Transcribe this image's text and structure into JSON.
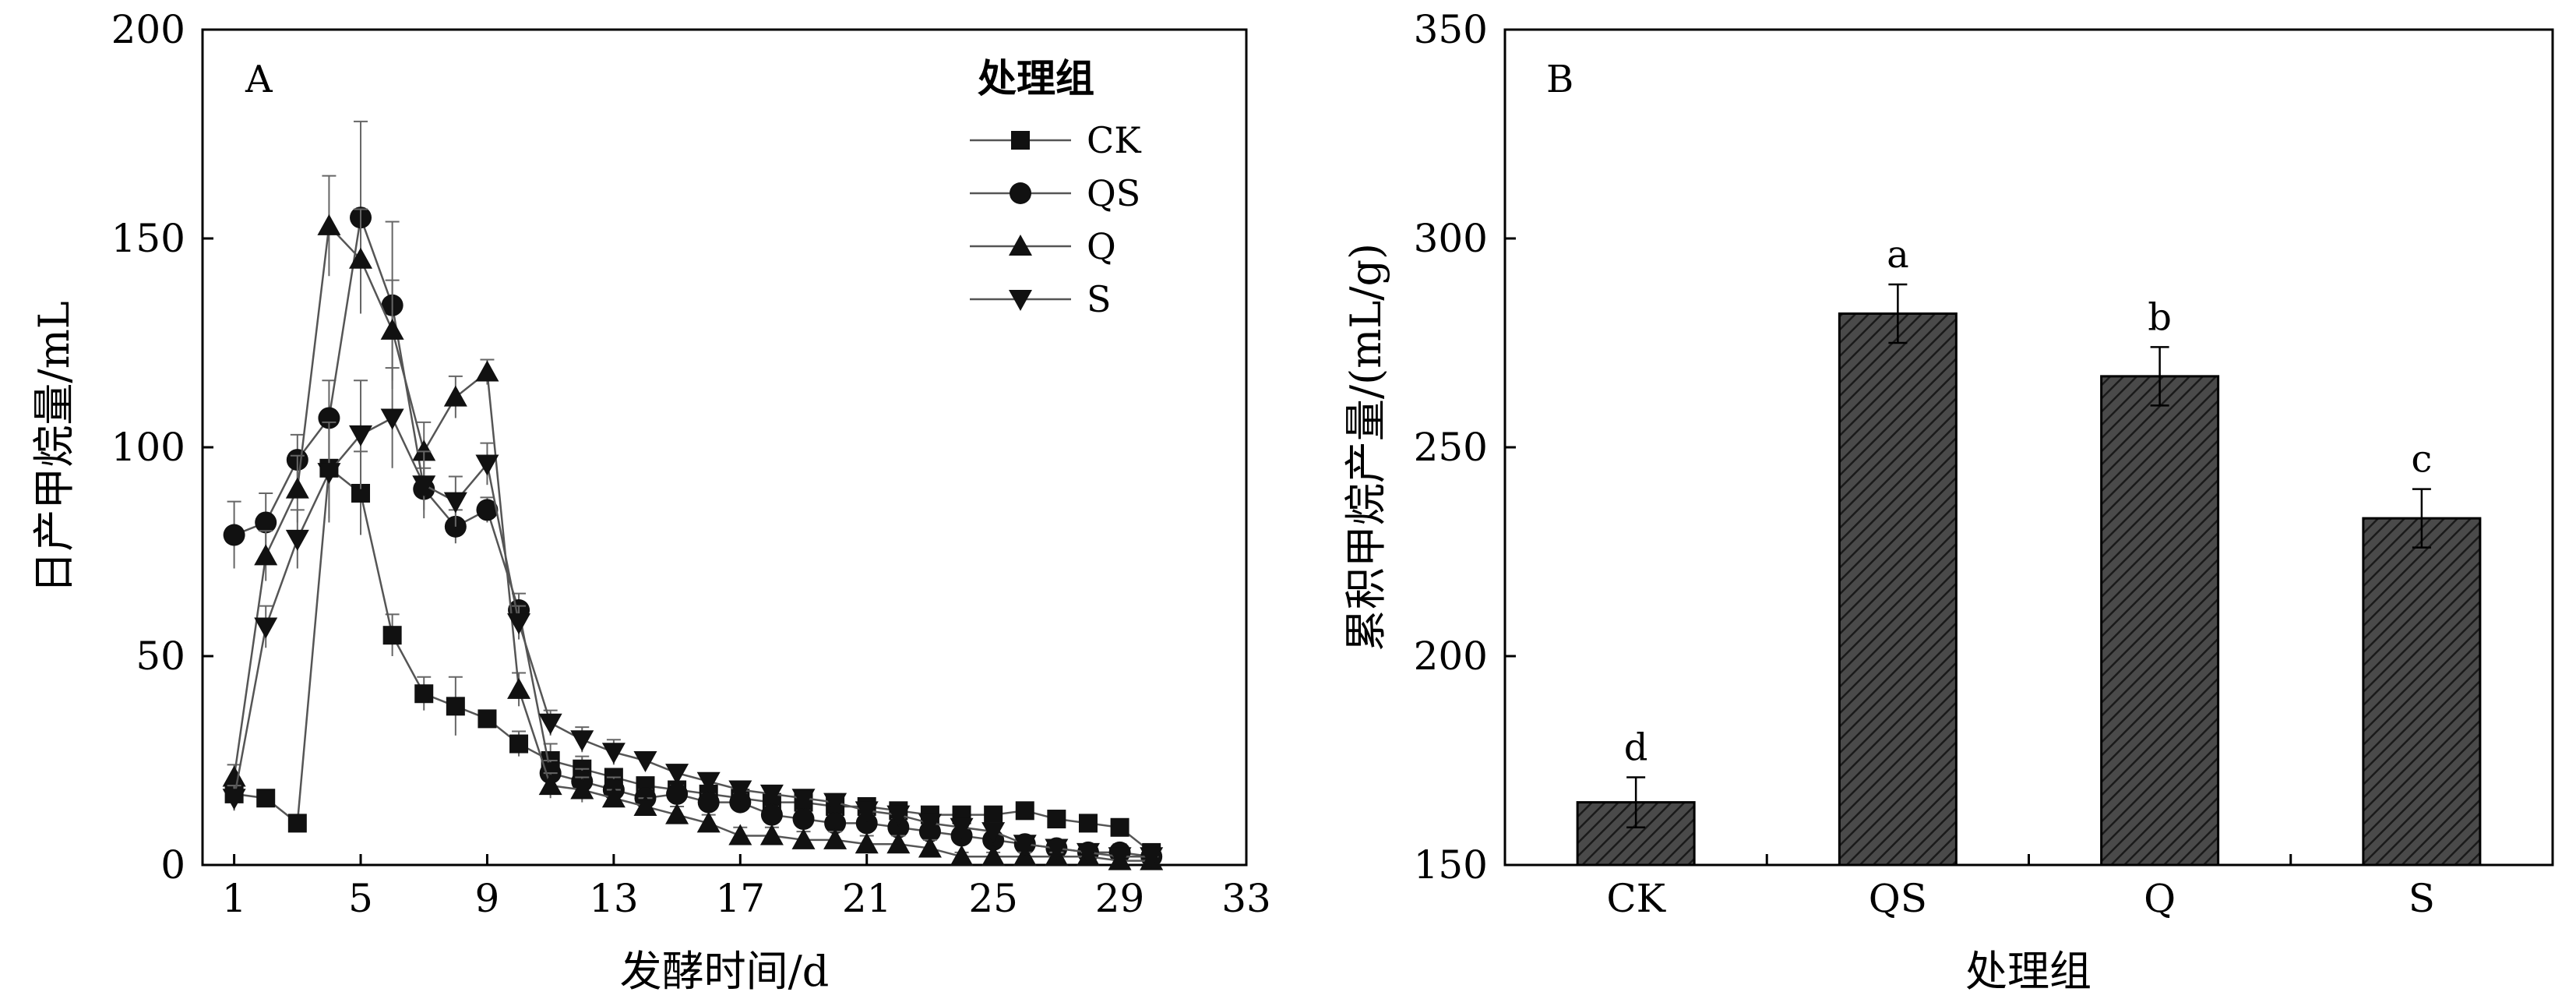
{
  "chart_data": [
    {
      "type": "line",
      "panel_label": "A",
      "xlabel": "发酵时间/d",
      "ylabel": "日产甲烷量/mL",
      "xlim": [
        0,
        33
      ],
      "ylim": [
        0,
        200
      ],
      "xticks": [
        1,
        5,
        9,
        13,
        17,
        21,
        25,
        29,
        33
      ],
      "yticks": [
        0,
        50,
        100,
        150,
        200
      ],
      "legend_title": "处理组",
      "legend_position": "top-right",
      "series": [
        {
          "name": "CK",
          "marker": "square",
          "x": [
            1,
            2,
            3,
            4,
            5,
            6,
            7,
            8,
            9,
            10,
            11,
            12,
            13,
            14,
            15,
            16,
            17,
            18,
            19,
            20,
            21,
            22,
            23,
            24,
            25,
            26,
            27,
            28,
            29,
            30
          ],
          "y": [
            17,
            16,
            10,
            95,
            89,
            55,
            41,
            38,
            35,
            29,
            25,
            23,
            21,
            19,
            18,
            17,
            16,
            15,
            15,
            14,
            14,
            13,
            12,
            12,
            12,
            13,
            11,
            10,
            9,
            3
          ],
          "err": [
            3,
            2,
            1,
            12,
            10,
            5,
            4,
            7,
            2,
            3,
            4,
            3,
            2,
            2,
            2,
            2,
            2,
            2,
            2,
            2,
            2,
            2,
            2,
            2,
            2,
            2,
            2,
            2,
            2,
            1
          ]
        },
        {
          "name": "QS",
          "marker": "circle",
          "x": [
            1,
            2,
            3,
            4,
            5,
            6,
            7,
            8,
            9,
            10,
            11,
            12,
            13,
            14,
            15,
            16,
            17,
            18,
            19,
            20,
            21,
            22,
            23,
            24,
            25,
            26,
            27,
            28,
            29,
            30
          ],
          "y": [
            79,
            82,
            97,
            107,
            155,
            134,
            90,
            81,
            85,
            61,
            22,
            20,
            18,
            16,
            17,
            15,
            15,
            12,
            11,
            10,
            10,
            9,
            8,
            7,
            6,
            5,
            4,
            3,
            3,
            2
          ],
          "err": [
            8,
            7,
            6,
            9,
            23,
            20,
            5,
            4,
            3,
            4,
            3,
            3,
            3,
            2,
            2,
            2,
            2,
            2,
            2,
            2,
            2,
            2,
            2,
            2,
            2,
            2,
            2,
            2,
            2,
            1
          ]
        },
        {
          "name": "Q",
          "marker": "triangle-up",
          "x": [
            1,
            2,
            3,
            4,
            5,
            6,
            7,
            8,
            9,
            10,
            11,
            12,
            13,
            14,
            15,
            16,
            17,
            18,
            19,
            20,
            21,
            22,
            23,
            24,
            25,
            26,
            27,
            28,
            29,
            30
          ],
          "y": [
            21,
            74,
            90,
            153,
            145,
            128,
            99,
            112,
            118,
            42,
            19,
            18,
            16,
            14,
            12,
            10,
            7,
            7,
            6,
            6,
            5,
            5,
            4,
            2,
            2,
            2,
            2,
            2,
            1,
            1
          ],
          "err": [
            3,
            6,
            8,
            12,
            12,
            12,
            7,
            5,
            3,
            4,
            3,
            3,
            2,
            2,
            2,
            2,
            2,
            2,
            2,
            2,
            2,
            2,
            2,
            1,
            1,
            1,
            1,
            1,
            1,
            1
          ]
        },
        {
          "name": "S",
          "marker": "triangle-down",
          "x": [
            1,
            2,
            3,
            4,
            5,
            6,
            7,
            8,
            9,
            10,
            11,
            12,
            13,
            14,
            15,
            16,
            17,
            18,
            19,
            20,
            21,
            22,
            23,
            24,
            25,
            26,
            27,
            28,
            29,
            30
          ],
          "y": [
            16,
            57,
            78,
            94,
            103,
            107,
            91,
            87,
            96,
            58,
            34,
            30,
            27,
            25,
            22,
            20,
            18,
            17,
            16,
            15,
            13,
            12,
            10,
            9,
            8,
            5,
            4,
            3,
            2,
            2
          ],
          "err": [
            3,
            5,
            7,
            12,
            13,
            12,
            8,
            6,
            5,
            4,
            3,
            3,
            3,
            2,
            2,
            2,
            2,
            2,
            2,
            2,
            2,
            2,
            2,
            2,
            2,
            1,
            1,
            1,
            1,
            1
          ]
        }
      ]
    },
    {
      "type": "bar",
      "panel_label": "B",
      "xlabel": "处理组",
      "ylabel": "累积甲烷产量/(mL/g)",
      "ylim": [
        150,
        350
      ],
      "yticks": [
        150,
        200,
        250,
        300,
        350
      ],
      "categories": [
        "CK",
        "QS",
        "Q",
        "S"
      ],
      "values": [
        165,
        282,
        267,
        233
      ],
      "err": [
        6,
        7,
        7,
        7
      ],
      "significance": [
        "d",
        "a",
        "b",
        "c"
      ],
      "bar_color": "#3a3a3a",
      "hatch": "diagonal"
    }
  ]
}
